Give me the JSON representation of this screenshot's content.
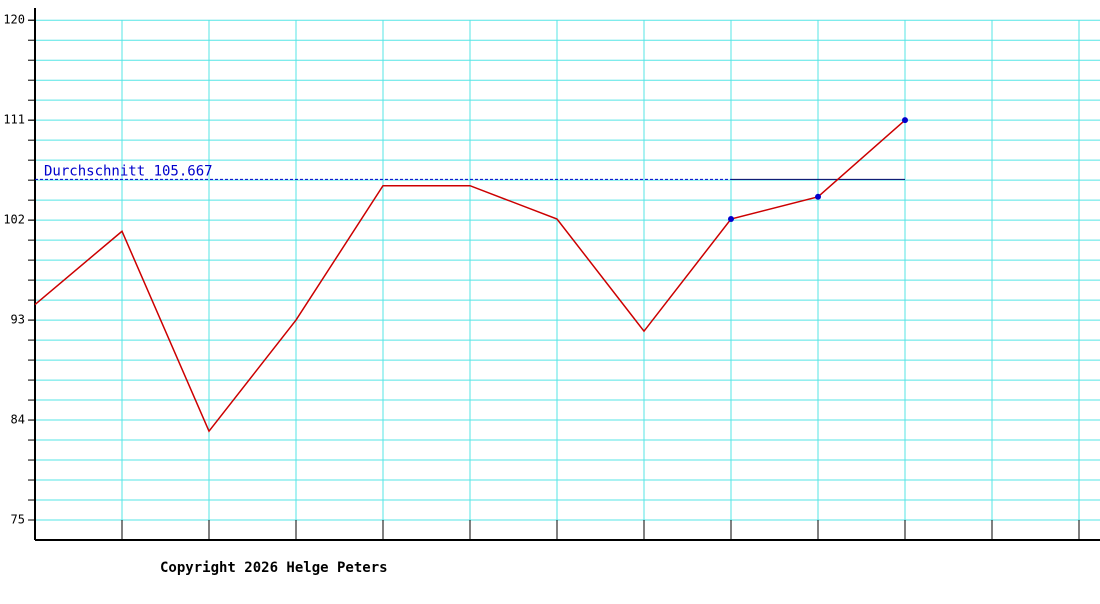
{
  "chart_data": {
    "type": "line",
    "x": [
      0,
      1,
      2,
      3,
      4,
      5,
      6,
      7,
      8,
      9,
      10
    ],
    "series": [
      {
        "color": "#cc0000",
        "marker_color": "#0000cc",
        "values": [
          94.4,
          101.0,
          83.0,
          93.0,
          105.1,
          105.1,
          102.1,
          92.0,
          102.1,
          104.1,
          111.0
        ],
        "markers": [
          false,
          false,
          false,
          false,
          false,
          false,
          false,
          false,
          true,
          true,
          true
        ]
      }
    ],
    "xlim": [
      0,
      12
    ],
    "xticks": [
      1,
      2,
      3,
      4,
      5,
      6,
      7,
      8,
      9,
      10,
      11,
      12
    ],
    "ylim": [
      73.2,
      121.1
    ],
    "yticks": [
      75,
      84,
      93,
      102,
      111,
      120
    ],
    "ygrid": [
      75,
      76.8,
      78.6,
      80.4,
      82.2,
      84,
      85.8,
      87.6,
      89.4,
      91.2,
      93,
      94.8,
      96.6,
      98.4,
      100.2,
      102,
      103.8,
      105.6,
      107.4,
      109.2,
      111,
      112.8,
      114.6,
      116.4,
      118.2,
      120
    ],
    "grid": true,
    "grid_color": "#55e5e5",
    "average": 105.667,
    "average_label": "Durchschnitt 105.667",
    "average_color": "#0000cc",
    "footer": "Copyright 2026 Helge Peters"
  }
}
